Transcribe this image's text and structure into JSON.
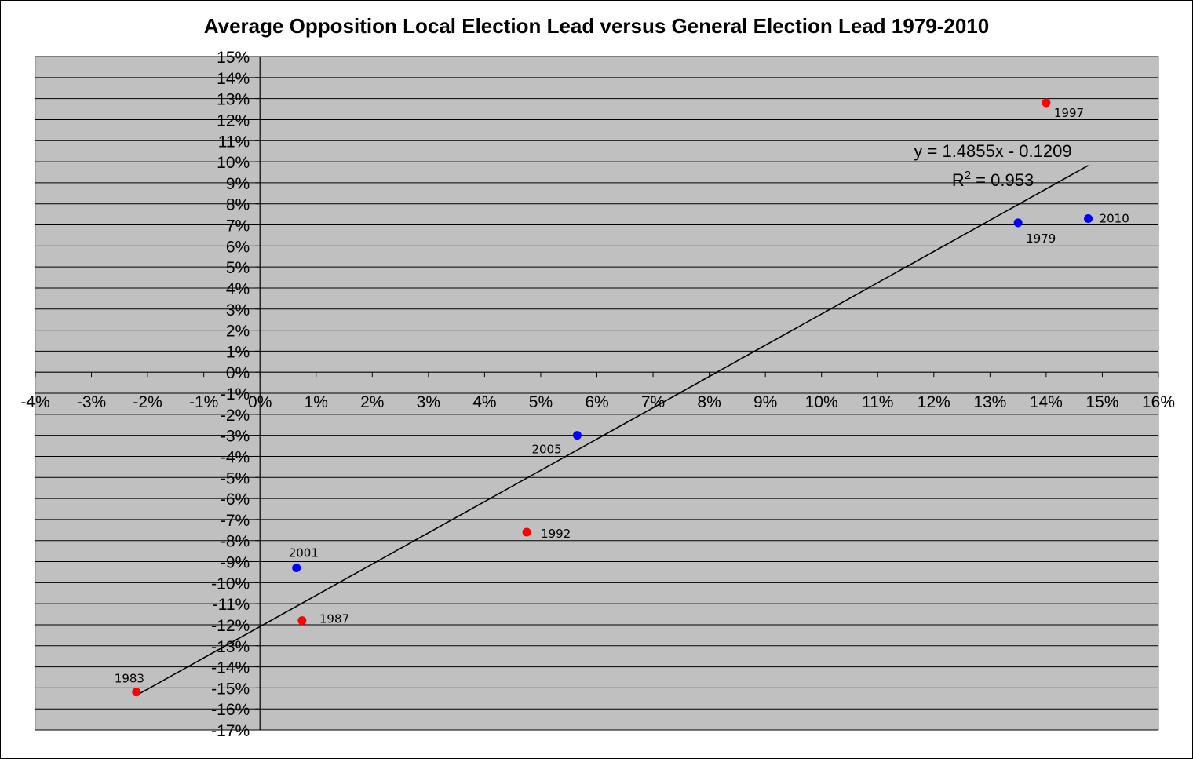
{
  "chart_data": {
    "type": "scatter",
    "title": "Average Opposition Local Election Lead versus General Election Lead 1979-2010",
    "xlabel": "",
    "ylabel": "",
    "xlim": [
      -0.04,
      0.16
    ],
    "ylim": [
      -0.17,
      0.15
    ],
    "x_ticks": [
      -0.04,
      -0.03,
      -0.02,
      -0.01,
      0,
      0.01,
      0.02,
      0.03,
      0.04,
      0.05,
      0.06,
      0.07,
      0.08,
      0.09,
      0.1,
      0.11,
      0.12,
      0.13,
      0.14,
      0.15,
      0.16
    ],
    "x_tick_labels": [
      "-4%",
      "-3%",
      "-2%",
      "-1%",
      "0%",
      "1%",
      "2%",
      "3%",
      "4%",
      "5%",
      "6%",
      "7%",
      "8%",
      "9%",
      "10%",
      "11%",
      "12%",
      "13%",
      "14%",
      "15%",
      "16%"
    ],
    "y_ticks": [
      0.15,
      0.14,
      0.13,
      0.12,
      0.11,
      0.1,
      0.09,
      0.08,
      0.07,
      0.06,
      0.05,
      0.04,
      0.03,
      0.02,
      0.01,
      0,
      -0.01,
      -0.02,
      -0.03,
      -0.04,
      -0.05,
      -0.06,
      -0.07,
      -0.08,
      -0.09,
      -0.1,
      -0.11,
      -0.12,
      -0.13,
      -0.14,
      -0.15,
      -0.16,
      -0.17
    ],
    "y_tick_labels": [
      "15%",
      "14%",
      "13%",
      "12%",
      "11%",
      "10%",
      "9%",
      "8%",
      "7%",
      "6%",
      "5%",
      "4%",
      "3%",
      "2%",
      "1%",
      "0%",
      "-1%",
      "-2%",
      "-3%",
      "-4%",
      "-5%",
      "-6%",
      "-7%",
      "-8%",
      "-9%",
      "-10%",
      "-11%",
      "-12%",
      "-13%",
      "-14%",
      "-15%",
      "-16%",
      "-17%"
    ],
    "grid": "horizontal",
    "points": [
      {
        "label": "1979",
        "x": 0.135,
        "y": 0.071,
        "color": "#0000ff"
      },
      {
        "label": "1983",
        "x": -0.022,
        "y": -0.152,
        "color": "#ff0000"
      },
      {
        "label": "1987",
        "x": 0.0075,
        "y": -0.118,
        "color": "#ff0000"
      },
      {
        "label": "1992",
        "x": 0.0475,
        "y": -0.076,
        "color": "#ff0000"
      },
      {
        "label": "1997",
        "x": 0.14,
        "y": 0.128,
        "color": "#ff0000"
      },
      {
        "label": "2001",
        "x": 0.0065,
        "y": -0.093,
        "color": "#0000ff"
      },
      {
        "label": "2005",
        "x": 0.0565,
        "y": -0.03,
        "color": "#0000ff"
      },
      {
        "label": "2010",
        "x": 0.1475,
        "y": 0.073,
        "color": "#0000ff"
      }
    ],
    "trendline": {
      "slope": 1.4855,
      "intercept": -0.1209,
      "x_range": [
        -0.022,
        0.1475
      ],
      "equation_text": "y = 1.4855x - 0.1209",
      "r2_prefix": "R",
      "r2_exponent": "2",
      "r2_suffix": " = 0.953"
    },
    "colors": {
      "plot_background": "#c0c0c0",
      "gridline": "#000000",
      "trendline": "#000000"
    }
  }
}
